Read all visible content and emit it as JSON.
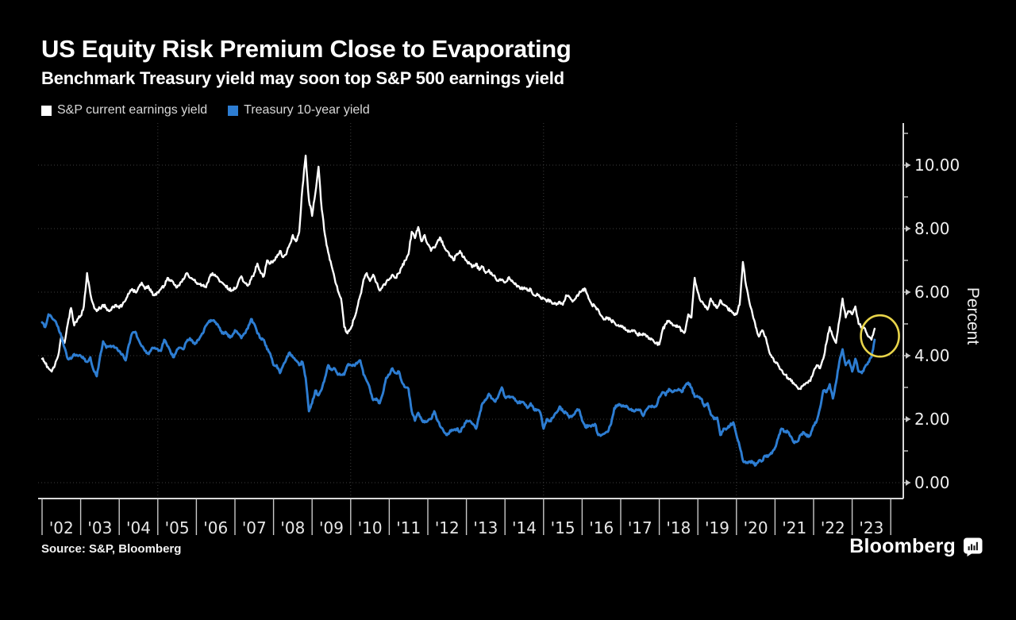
{
  "header": {
    "title": "US Equity Risk Premium Close to Evaporating",
    "subtitle": "Benchmark Treasury yield may soon top S&P 500 earnings yield"
  },
  "legend": {
    "items": [
      {
        "label": "S&P current earnings yield",
        "color": "#ffffff"
      },
      {
        "label": "Treasury 10-year yield",
        "color": "#2d7dd2"
      }
    ]
  },
  "footer": {
    "source": "Source: S&P, Bloomberg",
    "wordmark": "Bloomberg"
  },
  "chart_data": {
    "type": "line",
    "title": "US Equity Risk Premium Close to Evaporating",
    "subtitle": "Benchmark Treasury yield may soon top S&P 500 earnings yield",
    "ylabel": "Percent",
    "x_start": "2002-01",
    "x_end": "2023-08",
    "x_frequency": "monthly",
    "ylim": [
      0,
      11.6
    ],
    "grid": "dotted",
    "legend_position": "top-left",
    "y_axis": {
      "side": "right",
      "major": [
        {
          "value": 0,
          "label": "0.00"
        },
        {
          "value": 2,
          "label": "2.00"
        },
        {
          "value": 4,
          "label": "4.00"
        },
        {
          "value": 6,
          "label": "6.00"
        },
        {
          "value": 8,
          "label": "8.00"
        },
        {
          "value": 10,
          "label": "10.00"
        }
      ],
      "minor": [
        1,
        3,
        5,
        7,
        9,
        11
      ]
    },
    "x_axis": {
      "labels": [
        "'02",
        "'03",
        "'04",
        "'05",
        "'06",
        "'07",
        "'08",
        "'09",
        "'10",
        "'11",
        "'12",
        "'13",
        "'14",
        "'15",
        "'16",
        "'17",
        "'18",
        "'19",
        "'20",
        "'21",
        "'22",
        "'23"
      ],
      "grid_years": [
        2005,
        2010,
        2015,
        2020
      ]
    },
    "series": [
      {
        "name": "S&P current earnings yield",
        "color": "#ffffff",
        "monthly_values": [
          3.9,
          3.75,
          3.6,
          3.5,
          3.7,
          4.0,
          4.6,
          4.4,
          5.0,
          5.5,
          4.95,
          5.15,
          5.25,
          5.55,
          6.6,
          5.95,
          5.6,
          5.4,
          5.5,
          5.6,
          5.5,
          5.4,
          5.55,
          5.6,
          5.5,
          5.6,
          5.75,
          5.95,
          6.1,
          6.0,
          6.15,
          6.3,
          6.1,
          6.2,
          6.0,
          5.9,
          6.0,
          6.1,
          6.2,
          6.45,
          6.35,
          6.25,
          6.15,
          6.3,
          6.4,
          6.6,
          6.45,
          6.4,
          6.3,
          6.25,
          6.2,
          6.15,
          6.45,
          6.6,
          6.5,
          6.4,
          6.3,
          6.2,
          6.1,
          6.05,
          6.1,
          6.3,
          6.5,
          6.3,
          6.2,
          6.4,
          6.6,
          6.9,
          6.6,
          6.5,
          7.0,
          6.9,
          7.0,
          7.1,
          7.3,
          7.1,
          7.2,
          7.5,
          7.8,
          7.6,
          7.9,
          9.3,
          10.3,
          8.9,
          8.4,
          9.1,
          9.95,
          8.6,
          7.8,
          7.25,
          6.85,
          6.45,
          6.05,
          5.8,
          4.9,
          4.7,
          4.85,
          5.15,
          5.5,
          5.9,
          6.4,
          6.6,
          6.35,
          6.55,
          6.3,
          6.05,
          6.2,
          6.3,
          6.4,
          6.55,
          6.45,
          6.6,
          6.8,
          7.0,
          7.2,
          7.9,
          7.7,
          8.05,
          7.6,
          7.8,
          7.5,
          7.3,
          7.4,
          7.6,
          7.7,
          7.45,
          7.3,
          7.15,
          7.0,
          7.2,
          7.3,
          7.1,
          7.0,
          6.9,
          6.8,
          6.9,
          6.7,
          6.8,
          6.6,
          6.7,
          6.55,
          6.45,
          6.35,
          6.4,
          6.3,
          6.45,
          6.35,
          6.25,
          6.2,
          6.1,
          6.15,
          6.05,
          6.1,
          5.9,
          5.95,
          5.85,
          5.8,
          5.7,
          5.75,
          5.65,
          5.6,
          5.7,
          5.6,
          5.9,
          5.85,
          5.7,
          5.8,
          5.95,
          6.05,
          6.1,
          5.8,
          5.6,
          5.55,
          5.45,
          5.25,
          5.15,
          5.2,
          5.1,
          5.05,
          4.95,
          4.95,
          4.85,
          4.8,
          4.75,
          4.8,
          4.7,
          4.65,
          4.7,
          4.6,
          4.55,
          4.5,
          4.4,
          4.35,
          4.8,
          5.0,
          5.1,
          5.0,
          4.95,
          4.9,
          4.8,
          4.75,
          5.3,
          5.2,
          6.45,
          6.0,
          5.7,
          5.6,
          5.45,
          5.8,
          5.6,
          5.5,
          5.75,
          5.6,
          5.55,
          5.4,
          5.35,
          5.3,
          5.6,
          6.95,
          6.2,
          5.7,
          5.3,
          4.9,
          4.6,
          4.8,
          4.6,
          4.2,
          3.95,
          3.8,
          3.7,
          3.55,
          3.4,
          3.3,
          3.2,
          3.1,
          3.0,
          2.95,
          3.1,
          3.15,
          3.2,
          3.5,
          3.7,
          3.6,
          3.9,
          4.4,
          4.9,
          4.6,
          4.4,
          5.1,
          5.8,
          5.2,
          5.4,
          5.3,
          5.55,
          5.0,
          4.9,
          4.85,
          4.6,
          4.5,
          4.85
        ]
      },
      {
        "name": "Treasury 10-year yield",
        "color": "#2d7dd2",
        "monthly_values": [
          5.05,
          4.9,
          5.3,
          5.2,
          5.1,
          4.9,
          4.6,
          4.25,
          3.9,
          3.9,
          4.05,
          4.0,
          4.0,
          3.9,
          3.8,
          3.95,
          3.55,
          3.35,
          3.95,
          4.45,
          4.25,
          4.3,
          4.3,
          4.25,
          4.15,
          4.05,
          3.85,
          4.35,
          4.7,
          4.75,
          4.5,
          4.3,
          4.15,
          4.05,
          4.2,
          4.25,
          4.2,
          4.15,
          4.5,
          4.3,
          4.1,
          3.95,
          4.2,
          4.25,
          4.2,
          4.45,
          4.55,
          4.4,
          4.4,
          4.55,
          4.7,
          4.95,
          5.1,
          5.1,
          5.05,
          4.9,
          4.7,
          4.75,
          4.6,
          4.6,
          4.8,
          4.7,
          4.55,
          4.7,
          4.85,
          5.15,
          5.0,
          4.7,
          4.55,
          4.5,
          4.2,
          4.05,
          3.7,
          3.7,
          3.45,
          3.7,
          3.9,
          4.1,
          3.95,
          3.85,
          3.7,
          3.8,
          3.3,
          2.25,
          2.5,
          2.9,
          2.75,
          2.95,
          3.3,
          3.7,
          3.55,
          3.6,
          3.4,
          3.4,
          3.4,
          3.7,
          3.7,
          3.7,
          3.75,
          3.85,
          3.4,
          3.2,
          2.95,
          2.6,
          2.65,
          2.5,
          2.8,
          3.3,
          3.4,
          3.6,
          3.45,
          3.5,
          3.15,
          3.0,
          2.95,
          2.25,
          1.95,
          2.2,
          2.0,
          1.9,
          1.95,
          2.0,
          2.25,
          1.95,
          1.75,
          1.6,
          1.5,
          1.65,
          1.65,
          1.7,
          1.6,
          1.75,
          1.95,
          1.95,
          1.85,
          1.7,
          2.1,
          2.5,
          2.6,
          2.8,
          2.65,
          2.55,
          2.75,
          3.0,
          2.7,
          2.7,
          2.7,
          2.65,
          2.5,
          2.55,
          2.5,
          2.35,
          2.5,
          2.3,
          2.3,
          2.2,
          1.7,
          2.0,
          1.95,
          2.05,
          2.2,
          2.4,
          2.25,
          2.2,
          2.05,
          2.1,
          2.25,
          2.3,
          1.95,
          1.75,
          1.8,
          1.8,
          1.85,
          1.5,
          1.5,
          1.55,
          1.6,
          1.85,
          2.35,
          2.45,
          2.45,
          2.4,
          2.4,
          2.3,
          2.25,
          2.3,
          2.3,
          2.1,
          2.3,
          2.4,
          2.4,
          2.4,
          2.7,
          2.85,
          2.75,
          2.95,
          2.85,
          2.9,
          2.95,
          2.85,
          3.05,
          3.15,
          3.0,
          2.7,
          2.7,
          2.65,
          2.4,
          2.5,
          2.15,
          2.0,
          2.05,
          1.5,
          1.7,
          1.7,
          1.8,
          1.9,
          1.5,
          1.15,
          0.7,
          0.62,
          0.65,
          0.66,
          0.55,
          0.7,
          0.68,
          0.85,
          0.85,
          0.92,
          1.1,
          1.4,
          1.7,
          1.6,
          1.6,
          1.45,
          1.25,
          1.3,
          1.5,
          1.58,
          1.45,
          1.5,
          1.8,
          1.95,
          2.35,
          2.9,
          2.85,
          3.1,
          2.65,
          3.15,
          3.8,
          4.2,
          3.7,
          3.85,
          3.5,
          3.9,
          3.5,
          3.45,
          3.65,
          3.8,
          3.95,
          4.5
        ]
      }
    ],
    "annotation": {
      "type": "circle",
      "description": "highlight of converging yields at series end",
      "x_year": 2023.72,
      "value": 4.62,
      "color": "#e8d44a"
    }
  }
}
